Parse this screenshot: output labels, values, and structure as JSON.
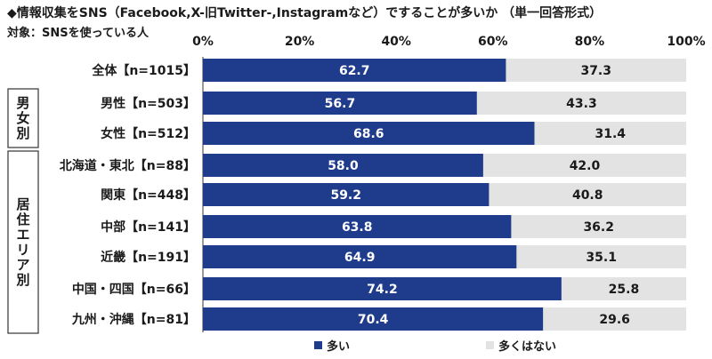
{
  "title": "◆情報収集をSNS（Facebook,X-旧Twitter-,Instagramなど）ですることが多いか （単一回答形式）",
  "subtitle": "対象：SNSを使っている人",
  "colors": {
    "series1": "#1f3c8c",
    "series2": "#e3e3e3"
  },
  "chart_data": {
    "type": "bar",
    "orientation": "horizontal",
    "stacked": true,
    "xlim": [
      0,
      100
    ],
    "xticks": [
      "0%",
      "20%",
      "40%",
      "60%",
      "80%",
      "100%"
    ],
    "categories": [
      "全体【n=1015】",
      "男性【n=503】",
      "女性【n=512】",
      "北海道・東北【n=88】",
      "関東【n=448】",
      "中部【n=141】",
      "近畿【n=191】",
      "中国・四国【n=66】",
      "九州・沖縄【n=81】"
    ],
    "groups": [
      {
        "label": "男女別",
        "start": 1,
        "end": 2
      },
      {
        "label": "居住エリア別",
        "start": 3,
        "end": 8
      }
    ],
    "series": [
      {
        "name": "多い",
        "values": [
          62.7,
          56.7,
          68.6,
          58.0,
          59.2,
          63.8,
          64.9,
          74.2,
          70.4
        ],
        "labels": [
          "62.7",
          "56.7",
          "68.6",
          "58.0",
          "59.2",
          "63.8",
          "64.9",
          "74.2",
          "70.4"
        ]
      },
      {
        "name": "多くはない",
        "values": [
          37.3,
          43.3,
          31.4,
          42.0,
          40.8,
          36.2,
          35.1,
          25.8,
          29.6
        ],
        "labels": [
          "37.3",
          "43.3",
          "31.4",
          "42.0",
          "40.8",
          "36.2",
          "35.1",
          "25.8",
          "29.6"
        ]
      }
    ],
    "legend_position": "bottom"
  }
}
